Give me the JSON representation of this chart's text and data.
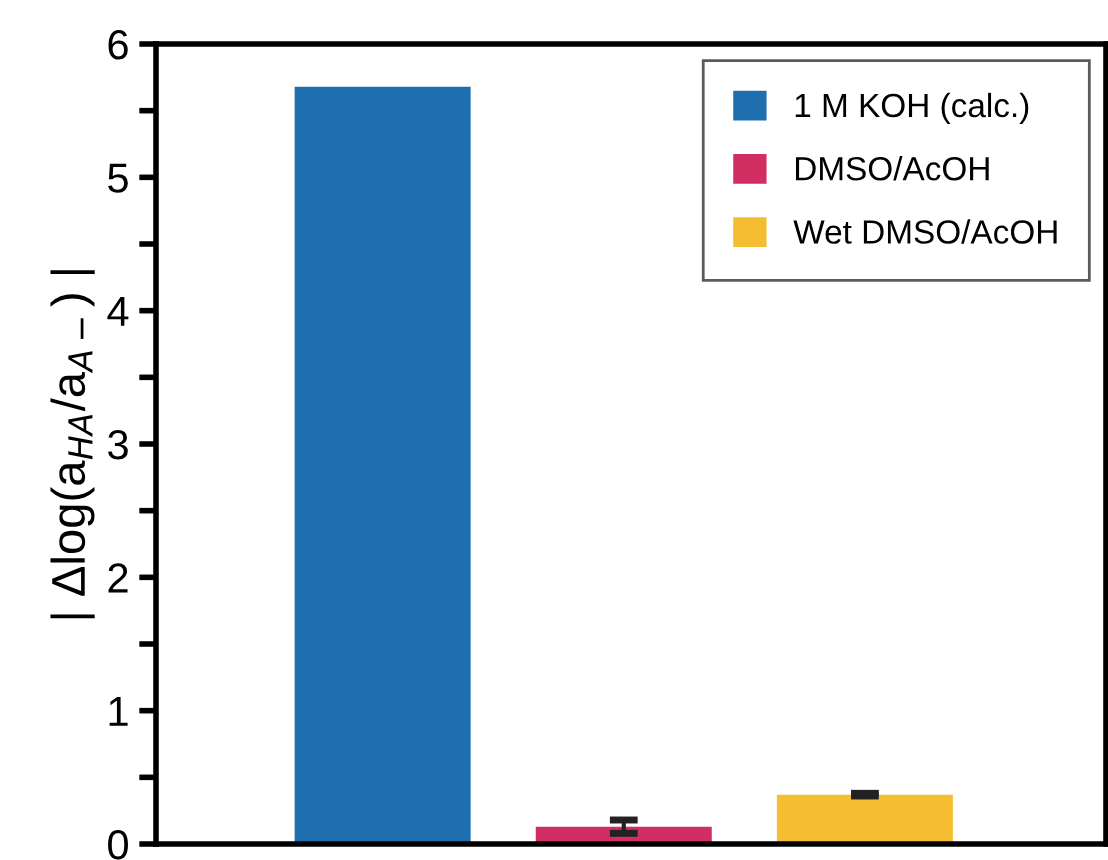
{
  "chart_data": {
    "type": "bar",
    "ylabel": "| Δlog(a$_{HA}$/a$_{A−}$) |",
    "categories": [
      null,
      null,
      null
    ],
    "series": [
      {
        "name": "1 M KOH (calc.)",
        "color": "#1f6fae",
        "values": [
          5.68,
          null,
          null
        ]
      },
      {
        "name": "DMSO/AcOH",
        "color": "#d12f64",
        "values": [
          null,
          0.13,
          null
        ],
        "errors": [
          null,
          0.05,
          null
        ]
      },
      {
        "name": "Wet DMSO/AcOH",
        "color": "#f5bd32",
        "values": [
          null,
          null,
          0.37
        ],
        "errors": [
          null,
          null,
          0.01
        ]
      }
    ],
    "ylim": [
      0,
      6
    ],
    "yticks": [
      0,
      {
        "value": 0.5,
        "label": null
      },
      1,
      {
        "value": 1.5,
        "label": null
      },
      2,
      {
        "value": 2.5,
        "label": null
      },
      3,
      {
        "value": 3.5,
        "label": null
      },
      4,
      {
        "value": 4.5,
        "label": null
      },
      5,
      {
        "value": 5.5,
        "label": null
      },
      6
    ],
    "legend": "top right",
    "grid": false
  }
}
